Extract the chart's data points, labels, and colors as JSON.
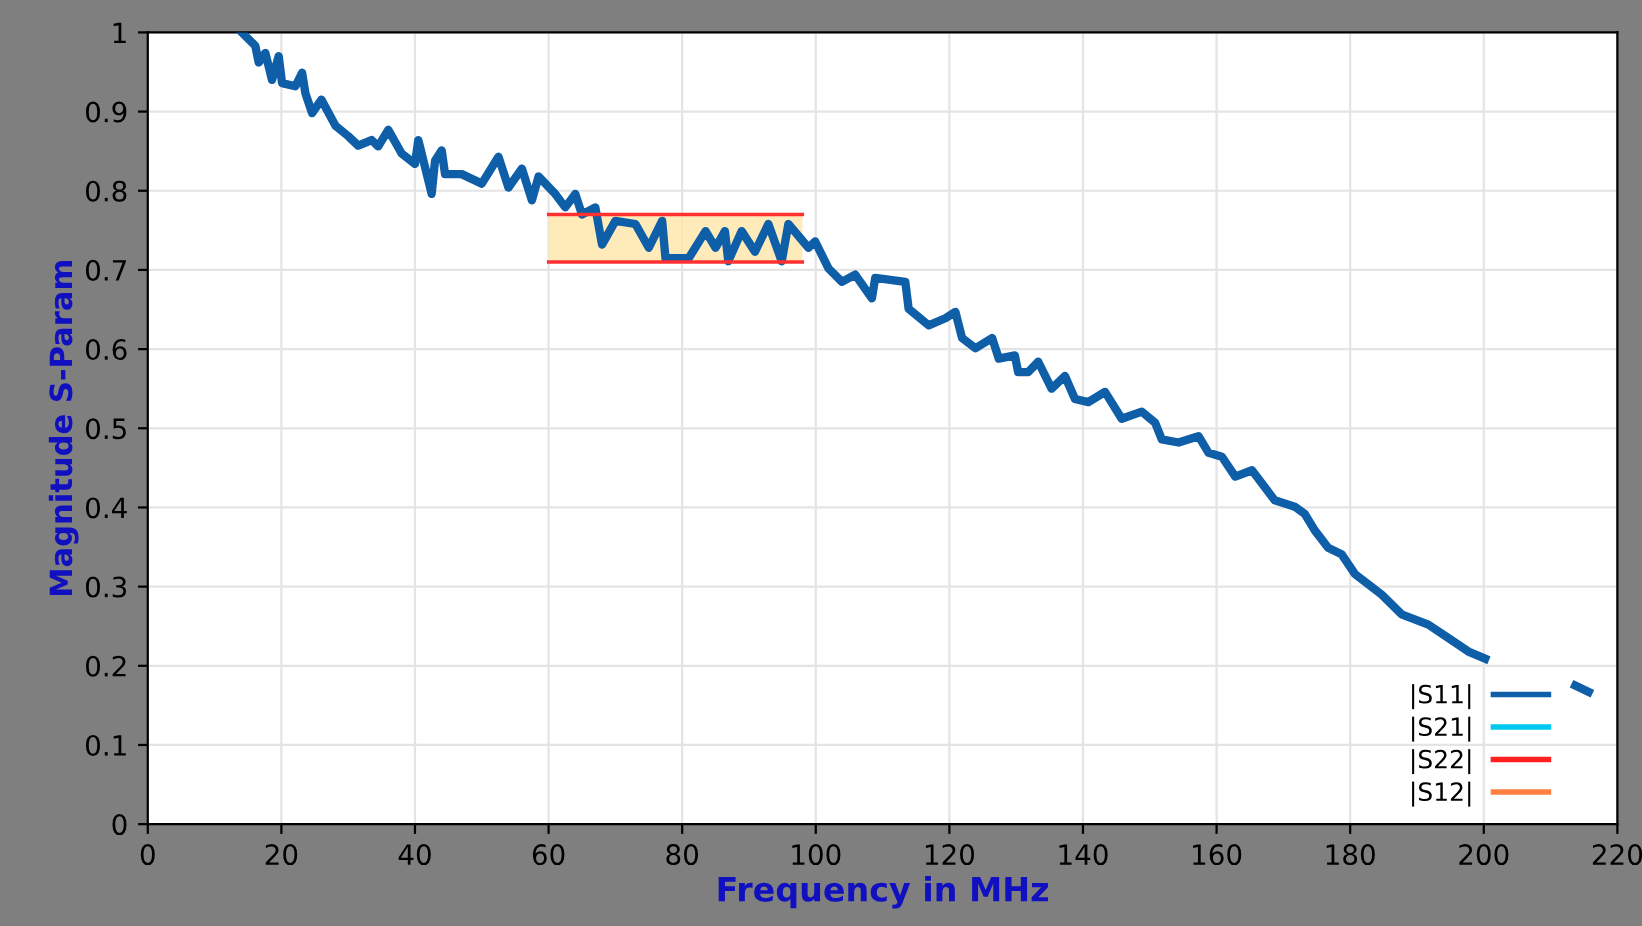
{
  "chart_data": {
    "type": "line",
    "xlabel": "Frequency in MHz",
    "ylabel": "Magnitude S-Param",
    "xlim": [
      0,
      220
    ],
    "xticks": [
      0,
      20,
      40,
      60,
      80,
      100,
      120,
      140,
      160,
      180,
      200,
      220
    ],
    "ylim": [
      0,
      1
    ],
    "yticks": [
      0,
      0.1,
      0.2,
      0.3,
      0.4,
      0.5,
      0.6,
      0.7,
      0.8,
      0.9,
      1
    ],
    "grid": true,
    "legend": "bottom right",
    "line_style": "solid",
    "marker": "none",
    "series": [
      {
        "name": "|S11|",
        "color": "#0f5ea8",
        "x": [
          14.1,
          16.1,
          16.6,
          17.6,
          18.6,
          19.6,
          20.1,
          22.1,
          23.1,
          23.6,
          24.6,
          26.0,
          28.1,
          30.0,
          31.5,
          33.5,
          34.5,
          36.0,
          38.0,
          40.0,
          40.5,
          42.5,
          43.0,
          44.0,
          44.5,
          47.0,
          50.0,
          52.5,
          54.0,
          56.0,
          57.5,
          58.5,
          61.0,
          62.5,
          64.0,
          65.0,
          67.0,
          68.0,
          70.0,
          73.0,
          75.0,
          77.0,
          77.5,
          81.0,
          83.5,
          85.0,
          86.4,
          86.9,
          88.9,
          90.9,
          92.9,
          94.9,
          95.9,
          98.9,
          99.9,
          101.9,
          103.9,
          105.9,
          108.4,
          108.9,
          113.4,
          113.9,
          116.9,
          119.4,
          120.9,
          121.9,
          123.9,
          126.4,
          127.4,
          129.8,
          130.3,
          131.8,
          133.3,
          135.3,
          137.3,
          138.8,
          140.8,
          143.3,
          145.8,
          148.8,
          150.8,
          151.8,
          154.3,
          157.3,
          158.8,
          160.8,
          162.8,
          165.3,
          168.7,
          171.7,
          173.2,
          174.7,
          176.7,
          178.7,
          180.7,
          182.7,
          184.7,
          187.7,
          191.7,
          194.7,
          197.7,
          200.2,
          206,
          213.7,
          215.7
        ],
        "values": [
          1.0,
          0.983,
          0.962,
          0.974,
          0.94,
          0.97,
          0.936,
          0.932,
          0.949,
          0.923,
          0.898,
          0.915,
          0.882,
          0.869,
          0.857,
          0.864,
          0.856,
          0.877,
          0.847,
          0.834,
          0.864,
          0.796,
          0.838,
          0.851,
          0.821,
          0.821,
          0.809,
          0.843,
          0.804,
          0.828,
          0.788,
          0.818,
          0.796,
          0.779,
          0.796,
          0.77,
          0.779,
          0.732,
          0.762,
          0.758,
          0.728,
          0.762,
          0.715,
          0.715,
          0.749,
          0.728,
          0.749,
          0.711,
          0.749,
          0.723,
          0.758,
          0.711,
          0.758,
          0.728,
          0.736,
          0.702,
          0.685,
          0.694,
          0.664,
          0.69,
          0.685,
          0.651,
          0.63,
          0.639,
          0.647,
          0.614,
          0.601,
          0.614,
          0.588,
          0.592,
          0.571,
          0.571,
          0.584,
          0.55,
          0.566,
          0.537,
          0.533,
          0.546,
          0.512,
          0.521,
          0.507,
          0.486,
          0.482,
          0.49,
          0.469,
          0.464,
          0.439,
          0.447,
          0.409,
          0.401,
          0.392,
          0.371,
          0.349,
          0.341,
          0.316,
          0.303,
          0.29,
          0.265,
          0.252,
          0.235,
          0.218,
          0.209,
          null,
          0.175,
          0.167
        ]
      },
      {
        "name": "|S21|",
        "color": "#00c8f0"
      },
      {
        "name": "|S22|",
        "color": "#ff2020"
      },
      {
        "name": "|S12|",
        "color": "#ff8040"
      },
      {
        "color": "#ffe6a8",
        "x": [
          60,
          98
        ],
        "values": [
          null,
          null
        ],
        "lower": [
          0.71,
          0.71
        ],
        "upper": [
          0.77,
          0.77
        ]
      },
      {
        "color": "#ff3030",
        "x": [
          60,
          98
        ],
        "values": [
          0.71,
          0.71
        ]
      },
      {
        "color": "#ff3030",
        "x": [
          60,
          98
        ],
        "values": [
          0.77,
          0.77
        ]
      }
    ]
  }
}
